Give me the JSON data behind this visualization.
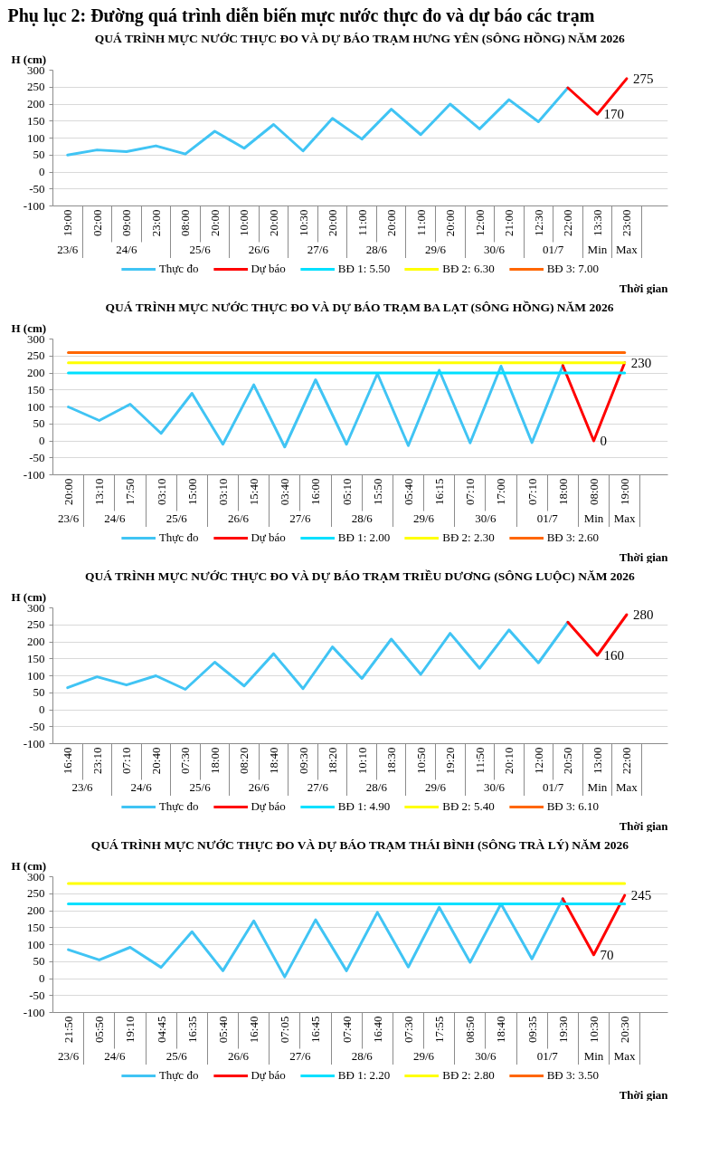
{
  "chart_data": [
    {
      "type": "line",
      "annotations": [
        "Phụ lục 2: Đường quá trình diễn biến mực nước thực đo và dự báo các trạm"
      ],
      "title": "QUÁ TRÌNH MỰC NƯỚC THỰC ĐO VÀ DỰ BÁO TRẠM HƯNG YÊN (SÔNG HỒNG) NĂM 2026",
      "ylabel": "H (cm)",
      "xlabel": "Thời gian",
      "grid": "y",
      "legend": "bottom",
      "ylim": [
        -100,
        300
      ],
      "yticks": [
        -100,
        -50,
        0,
        50,
        100,
        150,
        200,
        250,
        300
      ],
      "categories": [
        [
          "23/6",
          "19:00"
        ],
        [
          "24/6",
          "02:00"
        ],
        [
          null,
          "09:00"
        ],
        [
          null,
          "23:00"
        ],
        [
          "25/6",
          "08:00"
        ],
        [
          null,
          "20:00"
        ],
        [
          "26/6",
          "10:00"
        ],
        [
          null,
          "20:00"
        ],
        [
          "27/6",
          "10:30"
        ],
        [
          null,
          "20:00"
        ],
        [
          "28/6",
          "11:00"
        ],
        [
          null,
          "20:00"
        ],
        [
          "29/6",
          "11:00"
        ],
        [
          null,
          "20:00"
        ],
        [
          "30/6",
          "12:00"
        ],
        [
          null,
          "21:00"
        ],
        [
          "01/7",
          "12:30"
        ],
        [
          null,
          "22:00"
        ],
        [
          "Min",
          "13:30"
        ],
        [
          "Max",
          "23:00"
        ]
      ],
      "series": [
        {
          "name": "Thực đo",
          "color": "#40c4f4",
          "values": [
            50,
            65,
            60,
            77,
            53,
            120,
            70,
            140,
            62,
            158,
            97,
            185,
            110,
            200,
            127,
            213,
            148,
            248,
            null,
            null
          ]
        },
        {
          "name": "Dự báo",
          "color": "#ff0000",
          "values": [
            null,
            null,
            null,
            null,
            null,
            null,
            null,
            null,
            null,
            null,
            null,
            null,
            null,
            null,
            null,
            null,
            null,
            248,
            170,
            275
          ],
          "value_labels": [
            null,
            null,
            null,
            null,
            null,
            null,
            null,
            null,
            null,
            null,
            null,
            null,
            null,
            null,
            null,
            null,
            null,
            null,
            "170",
            "275"
          ]
        },
        {
          "name": "BĐ 1: 5.50",
          "color": "#00e0ff",
          "values": [
            null,
            null,
            null,
            null,
            null,
            null,
            null,
            null,
            null,
            null,
            null,
            null,
            null,
            null,
            null,
            null,
            null,
            null,
            null,
            null
          ]
        },
        {
          "name": "BĐ 2: 6.30",
          "color": "#ffff00",
          "values": [
            null,
            null,
            null,
            null,
            null,
            null,
            null,
            null,
            null,
            null,
            null,
            null,
            null,
            null,
            null,
            null,
            null,
            null,
            null,
            null
          ]
        },
        {
          "name": "BĐ 3: 7.00",
          "color": "#ff6600",
          "values": [
            null,
            null,
            null,
            null,
            null,
            null,
            null,
            null,
            null,
            null,
            null,
            null,
            null,
            null,
            null,
            null,
            null,
            null,
            null,
            null
          ]
        }
      ]
    },
    {
      "type": "line",
      "title": "QUÁ TRÌNH MỰC NƯỚC THỰC ĐO VÀ DỰ BÁO TRẠM BA LẠT (SÔNG HỒNG) NĂM 2026",
      "ylabel": "H (cm)",
      "xlabel": "Thời gian",
      "grid": "y",
      "legend": "bottom",
      "ylim": [
        -100,
        300
      ],
      "yticks": [
        -100,
        -50,
        0,
        50,
        100,
        150,
        200,
        250,
        300
      ],
      "categories": [
        [
          "23/6",
          "20:00"
        ],
        [
          "24/6",
          "13:10"
        ],
        [
          null,
          "17:50"
        ],
        [
          "25/6",
          "03:10"
        ],
        [
          null,
          "15:00"
        ],
        [
          "26/6",
          "03:10"
        ],
        [
          null,
          "15:40"
        ],
        [
          "27/6",
          "03:40"
        ],
        [
          null,
          "16:00"
        ],
        [
          "28/6",
          "05:10"
        ],
        [
          null,
          "15:50"
        ],
        [
          "29/6",
          "05:40"
        ],
        [
          null,
          "16:15"
        ],
        [
          "30/6",
          "07:10"
        ],
        [
          null,
          "17:00"
        ],
        [
          "01/7",
          "07:10"
        ],
        [
          null,
          "18:00"
        ],
        [
          "Min",
          "08:00"
        ],
        [
          "Max",
          "19:00"
        ]
      ],
      "series": [
        {
          "name": "Thực đo",
          "color": "#40c4f4",
          "values": [
            100,
            60,
            108,
            22,
            140,
            -10,
            165,
            -18,
            180,
            -10,
            198,
            -14,
            208,
            -6,
            220,
            -5,
            222,
            null,
            null
          ]
        },
        {
          "name": "Dự báo",
          "color": "#ff0000",
          "values": [
            null,
            null,
            null,
            null,
            null,
            null,
            null,
            null,
            null,
            null,
            null,
            null,
            null,
            null,
            null,
            null,
            222,
            0,
            230
          ],
          "value_labels": [
            null,
            null,
            null,
            null,
            null,
            null,
            null,
            null,
            null,
            null,
            null,
            null,
            null,
            null,
            null,
            null,
            null,
            "0",
            "230"
          ]
        },
        {
          "name": "BĐ 1: 2.00",
          "color": "#00e0ff",
          "values": [
            200,
            200,
            200,
            200,
            200,
            200,
            200,
            200,
            200,
            200,
            200,
            200,
            200,
            200,
            200,
            200,
            200,
            200,
            200
          ]
        },
        {
          "name": "BĐ 2: 2.30",
          "color": "#ffff00",
          "values": [
            230,
            230,
            230,
            230,
            230,
            230,
            230,
            230,
            230,
            230,
            230,
            230,
            230,
            230,
            230,
            230,
            230,
            230,
            230
          ]
        },
        {
          "name": "BĐ 3: 2.60",
          "color": "#ff6600",
          "values": [
            260,
            260,
            260,
            260,
            260,
            260,
            260,
            260,
            260,
            260,
            260,
            260,
            260,
            260,
            260,
            260,
            260,
            260,
            260
          ]
        }
      ]
    },
    {
      "type": "line",
      "title": "QUÁ TRÌNH MỰC NƯỚC THỰC ĐO VÀ DỰ BÁO TRẠM TRIỀU DƯƠNG (SÔNG LUỘC) NĂM 2026",
      "ylabel": "H (cm)",
      "xlabel": "Thời gian",
      "grid": "y",
      "legend": "bottom",
      "ylim": [
        -100,
        300
      ],
      "yticks": [
        -100,
        -50,
        0,
        50,
        100,
        150,
        200,
        250,
        300
      ],
      "categories": [
        [
          "23/6",
          "16:40"
        ],
        [
          null,
          "23:10"
        ],
        [
          "24/6",
          "07:10"
        ],
        [
          null,
          "20:40"
        ],
        [
          "25/6",
          "07:30"
        ],
        [
          null,
          "18:00"
        ],
        [
          "26/6",
          "08:20"
        ],
        [
          null,
          "18:40"
        ],
        [
          "27/6",
          "09:30"
        ],
        [
          null,
          "18:20"
        ],
        [
          "28/6",
          "10:10"
        ],
        [
          null,
          "18:30"
        ],
        [
          "29/6",
          "10:50"
        ],
        [
          null,
          "19:20"
        ],
        [
          "30/6",
          "11:50"
        ],
        [
          null,
          "20:10"
        ],
        [
          "01/7",
          "12:00"
        ],
        [
          null,
          "20:50"
        ],
        [
          "Min",
          "13:00"
        ],
        [
          "Max",
          "22:00"
        ]
      ],
      "series": [
        {
          "name": "Thực đo",
          "color": "#40c4f4",
          "values": [
            65,
            97,
            73,
            100,
            60,
            140,
            70,
            165,
            62,
            185,
            92,
            208,
            104,
            225,
            122,
            235,
            138,
            258,
            null,
            null
          ]
        },
        {
          "name": "Dự báo",
          "color": "#ff0000",
          "values": [
            null,
            null,
            null,
            null,
            null,
            null,
            null,
            null,
            null,
            null,
            null,
            null,
            null,
            null,
            null,
            null,
            null,
            258,
            160,
            280
          ],
          "value_labels": [
            null,
            null,
            null,
            null,
            null,
            null,
            null,
            null,
            null,
            null,
            null,
            null,
            null,
            null,
            null,
            null,
            null,
            null,
            "160",
            "280"
          ]
        },
        {
          "name": "BĐ 1: 4.90",
          "color": "#00e0ff",
          "values": [
            null,
            null,
            null,
            null,
            null,
            null,
            null,
            null,
            null,
            null,
            null,
            null,
            null,
            null,
            null,
            null,
            null,
            null,
            null,
            null
          ]
        },
        {
          "name": "BĐ 2: 5.40",
          "color": "#ffff00",
          "values": [
            null,
            null,
            null,
            null,
            null,
            null,
            null,
            null,
            null,
            null,
            null,
            null,
            null,
            null,
            null,
            null,
            null,
            null,
            null,
            null
          ]
        },
        {
          "name": "BĐ 3: 6.10",
          "color": "#ff6600",
          "values": [
            null,
            null,
            null,
            null,
            null,
            null,
            null,
            null,
            null,
            null,
            null,
            null,
            null,
            null,
            null,
            null,
            null,
            null,
            null,
            null
          ]
        }
      ]
    },
    {
      "type": "line",
      "title": "QUÁ TRÌNH MỰC NƯỚC THỰC ĐO VÀ DỰ BÁO TRẠM THÁI BÌNH (SÔNG TRÀ LÝ) NĂM 2026",
      "ylabel": "H (cm)",
      "xlabel": "Thời gian",
      "grid": "y",
      "legend": "bottom",
      "ylim": [
        -100,
        300
      ],
      "yticks": [
        -100,
        -50,
        0,
        50,
        100,
        150,
        200,
        250,
        300
      ],
      "categories": [
        [
          "23/6",
          "21:50"
        ],
        [
          "24/6",
          "05:50"
        ],
        [
          null,
          "19:10"
        ],
        [
          "25/6",
          "04:45"
        ],
        [
          null,
          "16:35"
        ],
        [
          "26/6",
          "05:40"
        ],
        [
          null,
          "16:40"
        ],
        [
          "27/6",
          "07:05"
        ],
        [
          null,
          "16:45"
        ],
        [
          "28/6",
          "07:40"
        ],
        [
          null,
          "16:40"
        ],
        [
          "29/6",
          "07:30"
        ],
        [
          null,
          "17:55"
        ],
        [
          "30/6",
          "08:50"
        ],
        [
          null,
          "18:40"
        ],
        [
          "01/7",
          "09:35"
        ],
        [
          null,
          "19:30"
        ],
        [
          "Min",
          "10:30"
        ],
        [
          "Max",
          "20:30"
        ]
      ],
      "series": [
        {
          "name": "Thực đo",
          "color": "#40c4f4",
          "values": [
            85,
            55,
            92,
            33,
            138,
            23,
            170,
            5,
            173,
            23,
            195,
            34,
            210,
            48,
            220,
            58,
            235,
            null,
            null
          ]
        },
        {
          "name": "Dự báo",
          "color": "#ff0000",
          "values": [
            null,
            null,
            null,
            null,
            null,
            null,
            null,
            null,
            null,
            null,
            null,
            null,
            null,
            null,
            null,
            null,
            235,
            70,
            245
          ],
          "value_labels": [
            null,
            null,
            null,
            null,
            null,
            null,
            null,
            null,
            null,
            null,
            null,
            null,
            null,
            null,
            null,
            null,
            null,
            "70",
            "245"
          ]
        },
        {
          "name": "BĐ 1: 2.20",
          "color": "#00e0ff",
          "values": [
            220,
            220,
            220,
            220,
            220,
            220,
            220,
            220,
            220,
            220,
            220,
            220,
            220,
            220,
            220,
            220,
            220,
            220,
            220
          ]
        },
        {
          "name": "BĐ 2: 2.80",
          "color": "#ffff00",
          "values": [
            280,
            280,
            280,
            280,
            280,
            280,
            280,
            280,
            280,
            280,
            280,
            280,
            280,
            280,
            280,
            280,
            280,
            280,
            280
          ]
        },
        {
          "name": "BĐ 3: 3.50",
          "color": "#ff6600",
          "values": [
            null,
            null,
            null,
            null,
            null,
            null,
            null,
            null,
            null,
            null,
            null,
            null,
            null,
            null,
            null,
            null,
            null,
            null,
            null
          ]
        }
      ]
    }
  ]
}
